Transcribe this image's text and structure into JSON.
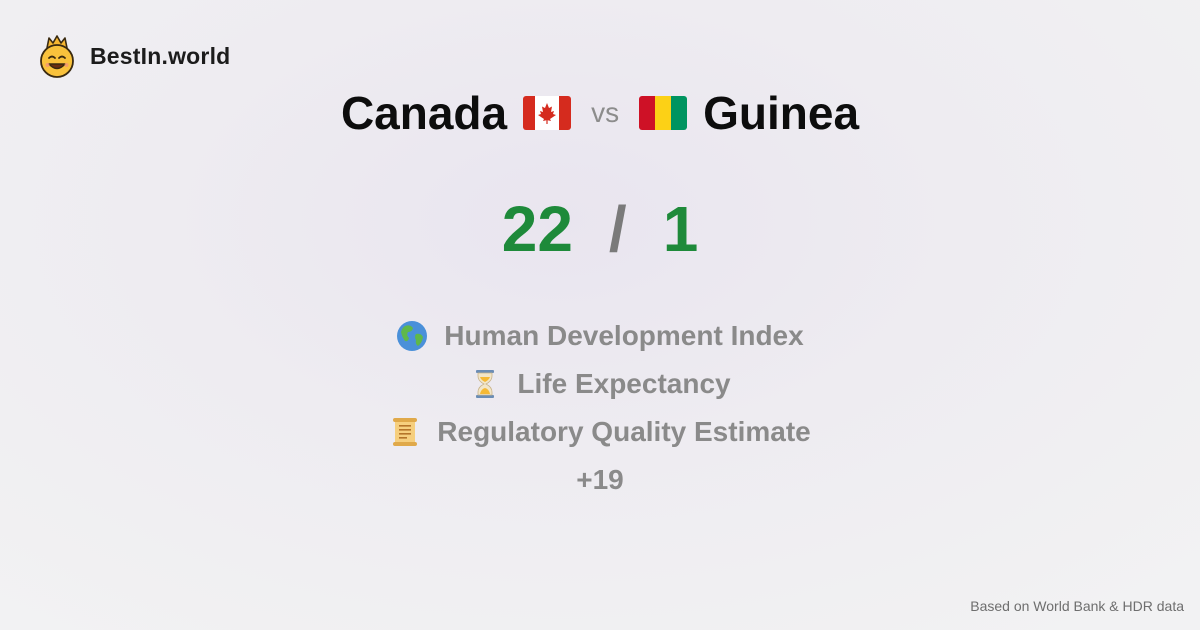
{
  "brand": {
    "name": "BestIn.world",
    "logo_icon": "smiling-crown-face-icon"
  },
  "comparison": {
    "country_a": {
      "name": "Canada",
      "flag_icon": "canada-flag-icon",
      "score": "22"
    },
    "vs_label": "vs",
    "country_b": {
      "name": "Guinea",
      "flag_icon": "guinea-flag-icon",
      "score": "1"
    },
    "separator": "/"
  },
  "metrics": [
    {
      "icon": "globe-icon",
      "label": "Human Development Index"
    },
    {
      "icon": "hourglass-icon",
      "label": "Life Expectancy"
    },
    {
      "icon": "scroll-icon",
      "label": "Regulatory Quality Estimate"
    }
  ],
  "more_count": "+19",
  "footer": {
    "source": "Based on World Bank & HDR data"
  },
  "colors": {
    "score": "#1e8a3a",
    "muted": "#8a8a8a",
    "title": "#0d0d0d"
  }
}
